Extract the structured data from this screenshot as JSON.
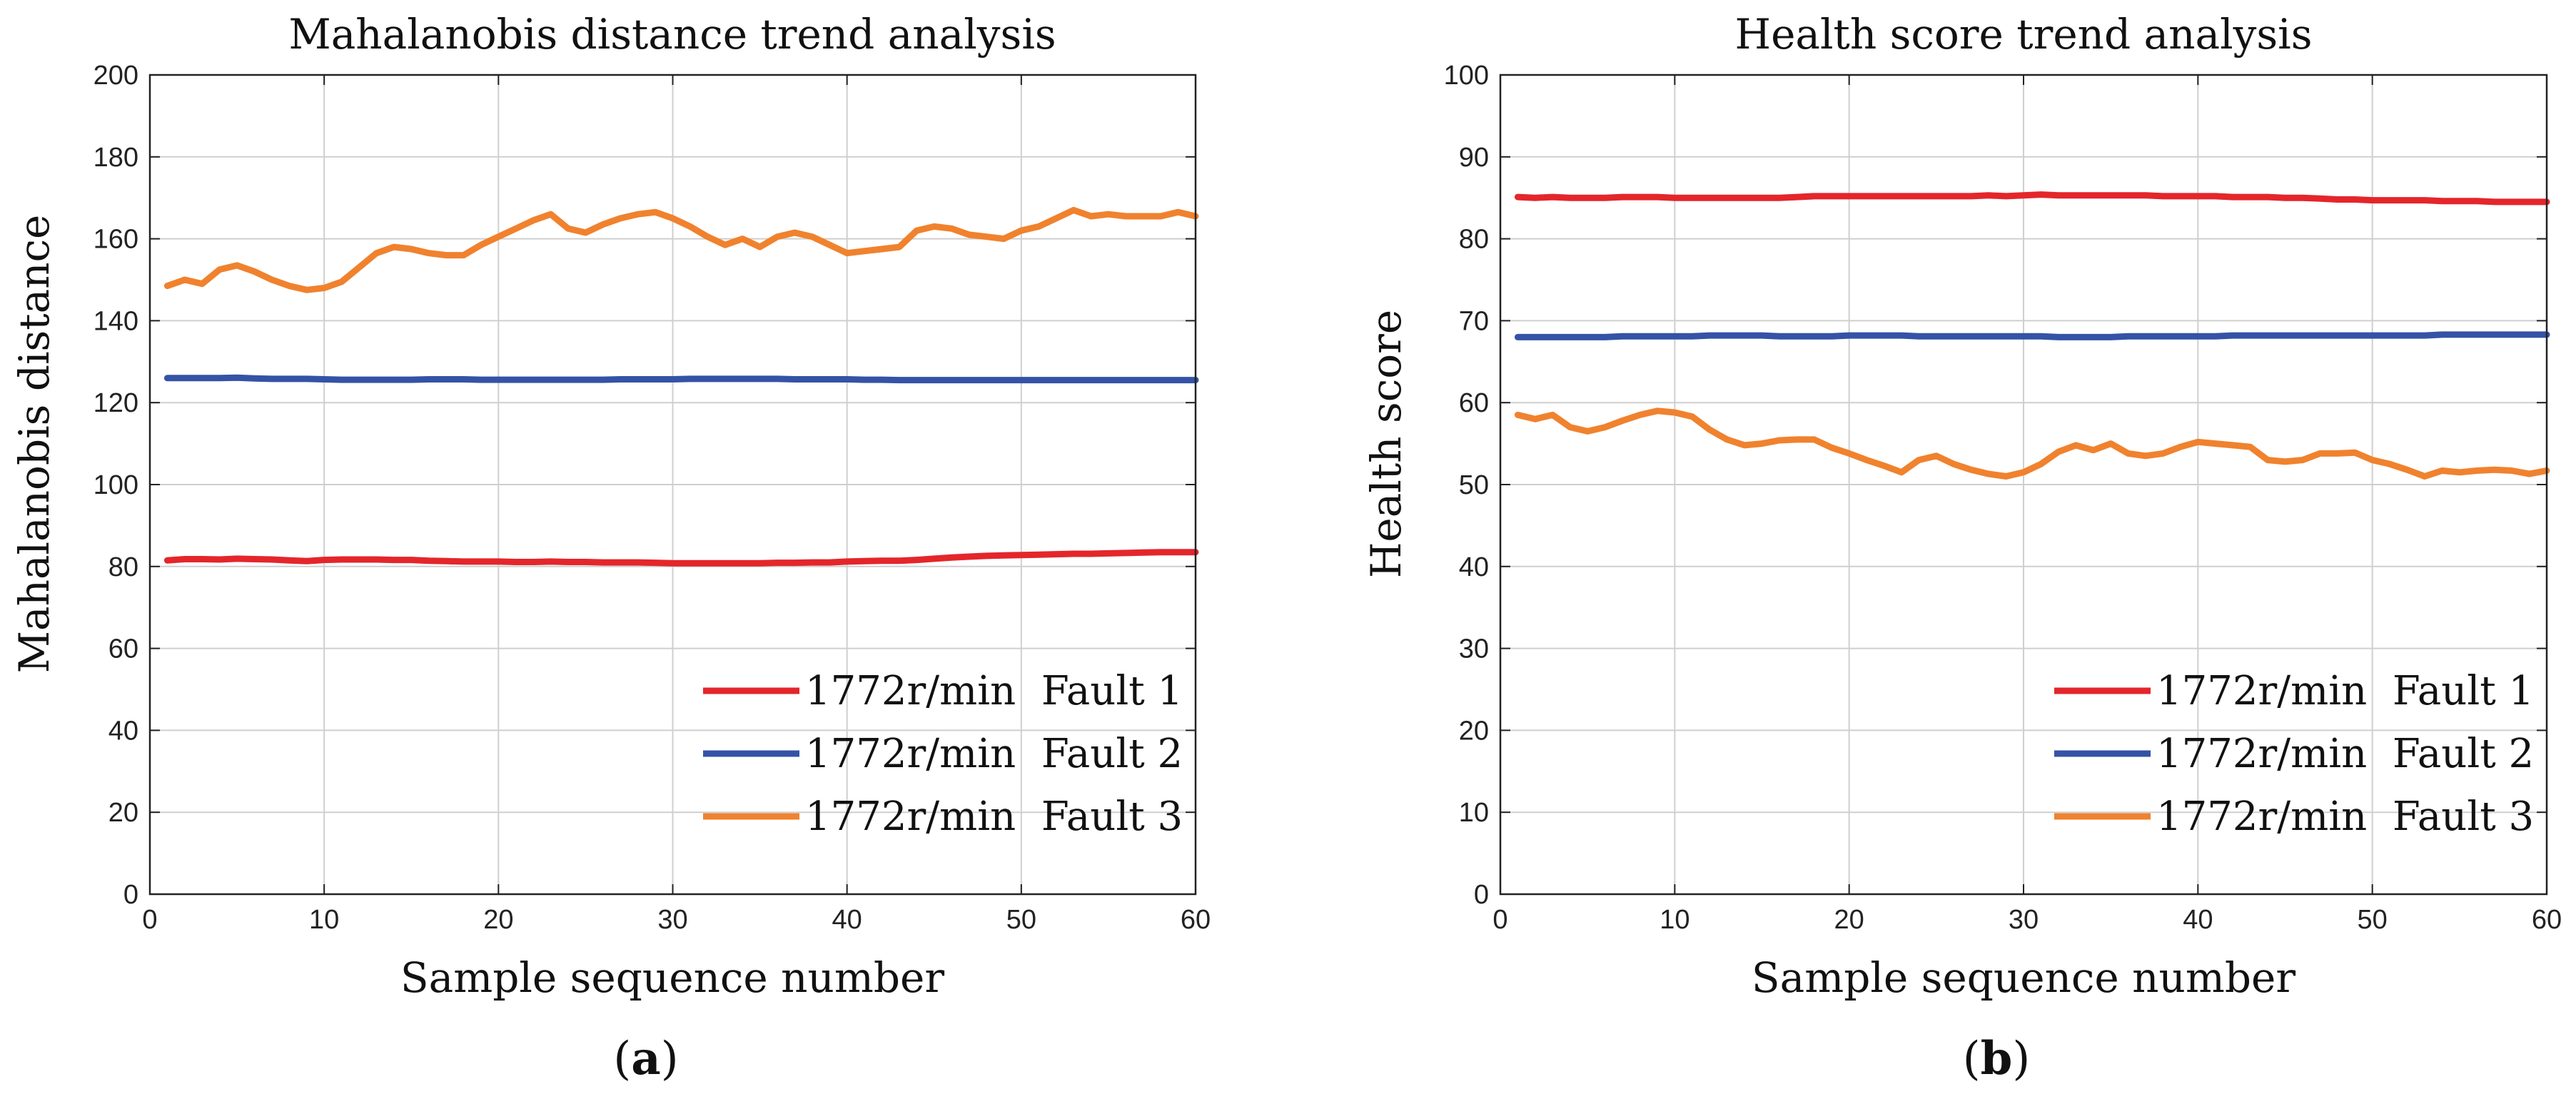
{
  "colors": {
    "fault1": "#e4262b",
    "fault2": "#3453a6",
    "fault3": "#f0822e",
    "grid": "#cfcfcf",
    "axis": "#222222"
  },
  "panels": [
    {
      "open": "(",
      "letter": "a",
      "close": ")"
    },
    {
      "open": "(",
      "letter": "b",
      "close": ")"
    }
  ],
  "chart_data": [
    {
      "type": "line",
      "title": "Mahalanobis distance trend analysis",
      "xlabel": "Sample sequence number",
      "ylabel": "Mahalanobis distance",
      "xlim": [
        0,
        60
      ],
      "ylim": [
        0,
        200
      ],
      "xticks": [
        0,
        10,
        20,
        30,
        40,
        50,
        60
      ],
      "yticks": [
        0,
        20,
        40,
        60,
        80,
        100,
        120,
        140,
        160,
        180,
        200
      ],
      "grid": true,
      "legend_position": "bottom-right",
      "x": [
        1,
        2,
        3,
        4,
        5,
        6,
        7,
        8,
        9,
        10,
        11,
        12,
        13,
        14,
        15,
        16,
        17,
        18,
        19,
        20,
        21,
        22,
        23,
        24,
        25,
        26,
        27,
        28,
        29,
        30,
        31,
        32,
        33,
        34,
        35,
        36,
        37,
        38,
        39,
        40,
        41,
        42,
        43,
        44,
        45,
        46,
        47,
        48,
        49,
        50,
        51,
        52,
        53,
        54,
        55,
        56,
        57,
        58,
        59,
        60
      ],
      "series": [
        {
          "name": "1772r/min  Fault 1",
          "color_key": "fault1",
          "values": [
            81.5,
            81.8,
            81.8,
            81.7,
            81.9,
            81.8,
            81.7,
            81.5,
            81.3,
            81.6,
            81.7,
            81.7,
            81.7,
            81.6,
            81.6,
            81.4,
            81.3,
            81.2,
            81.2,
            81.2,
            81.1,
            81.1,
            81.2,
            81.1,
            81.1,
            81.0,
            81.0,
            81.0,
            80.9,
            80.8,
            80.8,
            80.8,
            80.8,
            80.8,
            80.8,
            80.9,
            80.9,
            81.0,
            81.0,
            81.2,
            81.3,
            81.4,
            81.4,
            81.6,
            81.9,
            82.2,
            82.4,
            82.6,
            82.7,
            82.8,
            82.9,
            83.0,
            83.1,
            83.1,
            83.2,
            83.3,
            83.4,
            83.5,
            83.5,
            83.5
          ]
        },
        {
          "name": "1772r/min  Fault 2",
          "color_key": "fault2",
          "values": [
            126.0,
            126.0,
            126.0,
            126.0,
            126.1,
            125.9,
            125.8,
            125.8,
            125.8,
            125.7,
            125.6,
            125.6,
            125.6,
            125.6,
            125.6,
            125.7,
            125.7,
            125.7,
            125.6,
            125.6,
            125.6,
            125.6,
            125.6,
            125.6,
            125.6,
            125.6,
            125.7,
            125.7,
            125.7,
            125.7,
            125.8,
            125.8,
            125.8,
            125.8,
            125.8,
            125.8,
            125.7,
            125.7,
            125.7,
            125.7,
            125.6,
            125.6,
            125.5,
            125.5,
            125.5,
            125.5,
            125.5,
            125.5,
            125.5,
            125.5,
            125.5,
            125.5,
            125.5,
            125.5,
            125.5,
            125.5,
            125.5,
            125.5,
            125.5,
            125.5
          ]
        },
        {
          "name": "1772r/min  Fault 3",
          "color_key": "fault3",
          "values": [
            148.5,
            150.0,
            149.0,
            152.5,
            153.5,
            152.0,
            150.0,
            148.5,
            147.5,
            148.0,
            149.5,
            153.0,
            156.5,
            158.0,
            157.5,
            156.5,
            156.0,
            156.0,
            158.5,
            160.5,
            162.5,
            164.5,
            166.0,
            162.5,
            161.5,
            163.5,
            165.0,
            166.0,
            166.5,
            165.0,
            163.0,
            160.5,
            158.5,
            160.0,
            158.0,
            160.5,
            161.5,
            160.5,
            158.5,
            156.5,
            157.0,
            157.5,
            158.0,
            162.0,
            163.0,
            162.5,
            161.0,
            160.5,
            160.0,
            162.0,
            163.0,
            165.0,
            167.0,
            165.5,
            166.0,
            165.5,
            165.5,
            165.5,
            166.5,
            165.5
          ]
        }
      ]
    },
    {
      "type": "line",
      "title": "Health score trend analysis",
      "xlabel": "Sample sequence number",
      "ylabel": "Health score",
      "xlim": [
        0,
        60
      ],
      "ylim": [
        0,
        100
      ],
      "xticks": [
        0,
        10,
        20,
        30,
        40,
        50,
        60
      ],
      "yticks": [
        0,
        10,
        20,
        30,
        40,
        50,
        60,
        70,
        80,
        90,
        100
      ],
      "grid": true,
      "legend_position": "bottom-right",
      "x": [
        1,
        2,
        3,
        4,
        5,
        6,
        7,
        8,
        9,
        10,
        11,
        12,
        13,
        14,
        15,
        16,
        17,
        18,
        19,
        20,
        21,
        22,
        23,
        24,
        25,
        26,
        27,
        28,
        29,
        30,
        31,
        32,
        33,
        34,
        35,
        36,
        37,
        38,
        39,
        40,
        41,
        42,
        43,
        44,
        45,
        46,
        47,
        48,
        49,
        50,
        51,
        52,
        53,
        54,
        55,
        56,
        57,
        58,
        59,
        60
      ],
      "series": [
        {
          "name": "1772r/min  Fault 1",
          "color_key": "fault1",
          "values": [
            85.1,
            85.0,
            85.1,
            85.0,
            85.0,
            85.0,
            85.1,
            85.1,
            85.1,
            85.0,
            85.0,
            85.0,
            85.0,
            85.0,
            85.0,
            85.0,
            85.1,
            85.2,
            85.2,
            85.2,
            85.2,
            85.2,
            85.2,
            85.2,
            85.2,
            85.2,
            85.2,
            85.3,
            85.2,
            85.3,
            85.4,
            85.3,
            85.3,
            85.3,
            85.3,
            85.3,
            85.3,
            85.2,
            85.2,
            85.2,
            85.2,
            85.1,
            85.1,
            85.1,
            85.0,
            85.0,
            84.9,
            84.8,
            84.8,
            84.7,
            84.7,
            84.7,
            84.7,
            84.6,
            84.6,
            84.6,
            84.5,
            84.5,
            84.5,
            84.5
          ]
        },
        {
          "name": "1772r/min  Fault 2",
          "color_key": "fault2",
          "values": [
            68.0,
            68.0,
            68.0,
            68.0,
            68.0,
            68.0,
            68.1,
            68.1,
            68.1,
            68.1,
            68.1,
            68.2,
            68.2,
            68.2,
            68.2,
            68.1,
            68.1,
            68.1,
            68.1,
            68.2,
            68.2,
            68.2,
            68.2,
            68.1,
            68.1,
            68.1,
            68.1,
            68.1,
            68.1,
            68.1,
            68.1,
            68.0,
            68.0,
            68.0,
            68.0,
            68.1,
            68.1,
            68.1,
            68.1,
            68.1,
            68.1,
            68.2,
            68.2,
            68.2,
            68.2,
            68.2,
            68.2,
            68.2,
            68.2,
            68.2,
            68.2,
            68.2,
            68.2,
            68.3,
            68.3,
            68.3,
            68.3,
            68.3,
            68.3,
            68.3
          ]
        },
        {
          "name": "1772r/min  Fault 3",
          "color_key": "fault3",
          "values": [
            58.5,
            58.0,
            58.5,
            57.0,
            56.5,
            57.0,
            57.8,
            58.5,
            59.0,
            58.8,
            58.3,
            56.7,
            55.5,
            54.8,
            55.0,
            55.4,
            55.5,
            55.5,
            54.5,
            53.8,
            53.0,
            52.3,
            51.5,
            53.0,
            53.5,
            52.5,
            51.8,
            51.3,
            51.0,
            51.5,
            52.5,
            54.0,
            54.8,
            54.2,
            55.0,
            53.8,
            53.5,
            53.8,
            54.6,
            55.2,
            55.0,
            54.8,
            54.6,
            53.0,
            52.8,
            53.0,
            53.8,
            53.8,
            53.9,
            53.0,
            52.5,
            51.8,
            51.0,
            51.7,
            51.5,
            51.7,
            51.8,
            51.7,
            51.3,
            51.7
          ]
        }
      ]
    }
  ]
}
